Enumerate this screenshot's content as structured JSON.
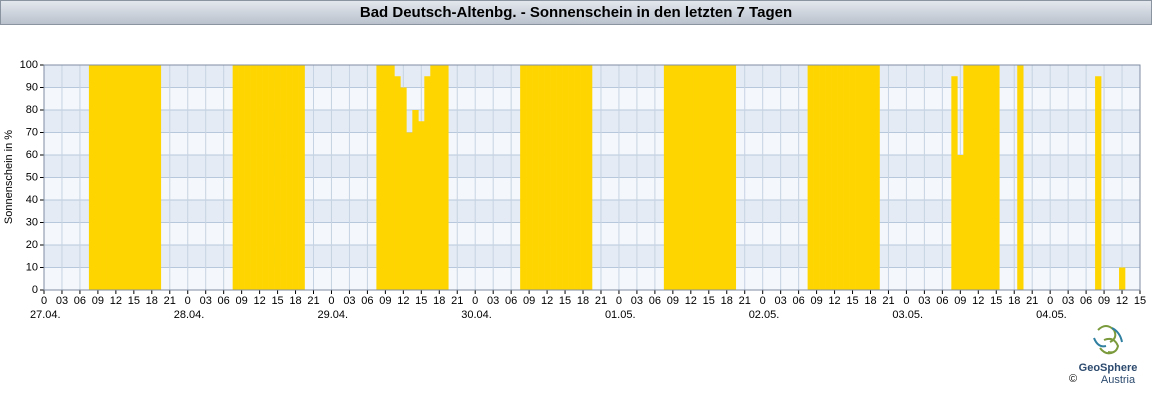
{
  "chart_data": {
    "type": "bar",
    "title": "Bad Deutsch-Altenbg. - Sonnenschein in den letzten 7 Tagen",
    "ylabel": "Sonnenschein in %",
    "color": "#ffd500",
    "grid": true,
    "x": [
      7.5,
      8.5,
      9.5,
      10.5,
      11.5,
      12.5,
      13.5,
      14.5,
      15.5,
      16.5,
      17.5,
      18.5,
      31.5,
      32.5,
      33.5,
      34.5,
      35.5,
      36.5,
      37.5,
      38.5,
      39.5,
      40.5,
      41.5,
      42.5,
      55.5,
      56.5,
      57.5,
      58.5,
      59.5,
      60.5,
      61.5,
      62.5,
      63.5,
      64.5,
      65.5,
      66.5,
      79.5,
      80.5,
      81.5,
      82.5,
      83.5,
      84.5,
      85.5,
      86.5,
      87.5,
      88.5,
      89.5,
      90.5,
      103.5,
      104.5,
      105.5,
      106.5,
      107.5,
      108.5,
      109.5,
      110.5,
      111.5,
      112.5,
      113.5,
      114.5,
      127.5,
      128.5,
      129.5,
      130.5,
      131.5,
      132.5,
      133.5,
      134.5,
      135.5,
      136.5,
      137.5,
      138.5,
      151.5,
      152.5,
      153.5,
      154.5,
      155.5,
      156.5,
      157.5,
      158.5,
      162.5,
      175.5,
      179.5
    ],
    "values": [
      100,
      100,
      100,
      100,
      100,
      100,
      100,
      100,
      100,
      100,
      100,
      100,
      100,
      100,
      100,
      100,
      100,
      100,
      100,
      100,
      100,
      100,
      100,
      100,
      100,
      100,
      100,
      95,
      90,
      70,
      80,
      75,
      95,
      100,
      100,
      100,
      100,
      100,
      100,
      100,
      100,
      100,
      100,
      100,
      100,
      100,
      100,
      100,
      100,
      100,
      100,
      100,
      100,
      100,
      100,
      100,
      100,
      100,
      100,
      100,
      100,
      100,
      100,
      100,
      100,
      100,
      100,
      100,
      100,
      100,
      100,
      100,
      95,
      60,
      100,
      100,
      100,
      100,
      100,
      100,
      100,
      95,
      10
    ],
    "xlim": [
      0,
      183
    ],
    "xticks": [
      0,
      {
        "value": 3,
        "label": "03"
      },
      {
        "value": 6,
        "label": "06"
      },
      {
        "value": 9,
        "label": "09"
      },
      12,
      15,
      18,
      21,
      {
        "value": 24,
        "label": "0"
      },
      {
        "value": 27,
        "label": "03"
      },
      {
        "value": 30,
        "label": "06"
      },
      {
        "value": 33,
        "label": "09"
      },
      {
        "value": 36,
        "label": "12"
      },
      {
        "value": 39,
        "label": "15"
      },
      {
        "value": 42,
        "label": "18"
      },
      {
        "value": 45,
        "label": "21"
      },
      {
        "value": 48,
        "label": "0"
      },
      {
        "value": 51,
        "label": "03"
      },
      {
        "value": 54,
        "label": "06"
      },
      {
        "value": 57,
        "label": "09"
      },
      {
        "value": 60,
        "label": "12"
      },
      {
        "value": 63,
        "label": "15"
      },
      {
        "value": 66,
        "label": "18"
      },
      {
        "value": 69,
        "label": "21"
      },
      {
        "value": 72,
        "label": "0"
      },
      {
        "value": 75,
        "label": "03"
      },
      {
        "value": 78,
        "label": "06"
      },
      {
        "value": 81,
        "label": "09"
      },
      {
        "value": 84,
        "label": "12"
      },
      {
        "value": 87,
        "label": "15"
      },
      {
        "value": 90,
        "label": "18"
      },
      {
        "value": 93,
        "label": "21"
      },
      {
        "value": 96,
        "label": "0"
      },
      {
        "value": 99,
        "label": "03"
      },
      {
        "value": 102,
        "label": "06"
      },
      {
        "value": 105,
        "label": "09"
      },
      {
        "value": 108,
        "label": "12"
      },
      {
        "value": 111,
        "label": "15"
      },
      {
        "value": 114,
        "label": "18"
      },
      {
        "value": 117,
        "label": "21"
      },
      {
        "value": 120,
        "label": "0"
      },
      {
        "value": 123,
        "label": "03"
      },
      {
        "value": 126,
        "label": "06"
      },
      {
        "value": 129,
        "label": "09"
      },
      {
        "value": 132,
        "label": "12"
      },
      {
        "value": 135,
        "label": "15"
      },
      {
        "value": 138,
        "label": "18"
      },
      {
        "value": 141,
        "label": "21"
      },
      {
        "value": 144,
        "label": "0"
      },
      {
        "value": 147,
        "label": "03"
      },
      {
        "value": 150,
        "label": "06"
      },
      {
        "value": 153,
        "label": "09"
      },
      {
        "value": 156,
        "label": "12"
      },
      {
        "value": 159,
        "label": "15"
      },
      {
        "value": 162,
        "label": "18"
      },
      {
        "value": 165,
        "label": "21"
      },
      {
        "value": 168,
        "label": "0"
      },
      {
        "value": 171,
        "label": "03"
      },
      {
        "value": 174,
        "label": "06"
      },
      {
        "value": 177,
        "label": "09"
      },
      {
        "value": 180,
        "label": "12"
      },
      {
        "value": 183,
        "label": "15"
      }
    ],
    "date_labels": [
      {
        "value": 0,
        "label": "27.04."
      },
      {
        "value": 24,
        "label": "28.04."
      },
      {
        "value": 48,
        "label": "29.04."
      },
      {
        "value": 72,
        "label": "30.04."
      },
      {
        "value": 96,
        "label": "01.05."
      },
      {
        "value": 120,
        "label": "02.05."
      },
      {
        "value": 144,
        "label": "03.05."
      },
      {
        "value": 168,
        "label": "04.05."
      }
    ],
    "ylim": [
      0,
      100
    ],
    "yticks": [
      0,
      10,
      20,
      30,
      40,
      50,
      60,
      70,
      80,
      90,
      100
    ]
  },
  "logo": {
    "name": "GeoSphere",
    "sub": "Austria",
    "copyright": "©"
  }
}
